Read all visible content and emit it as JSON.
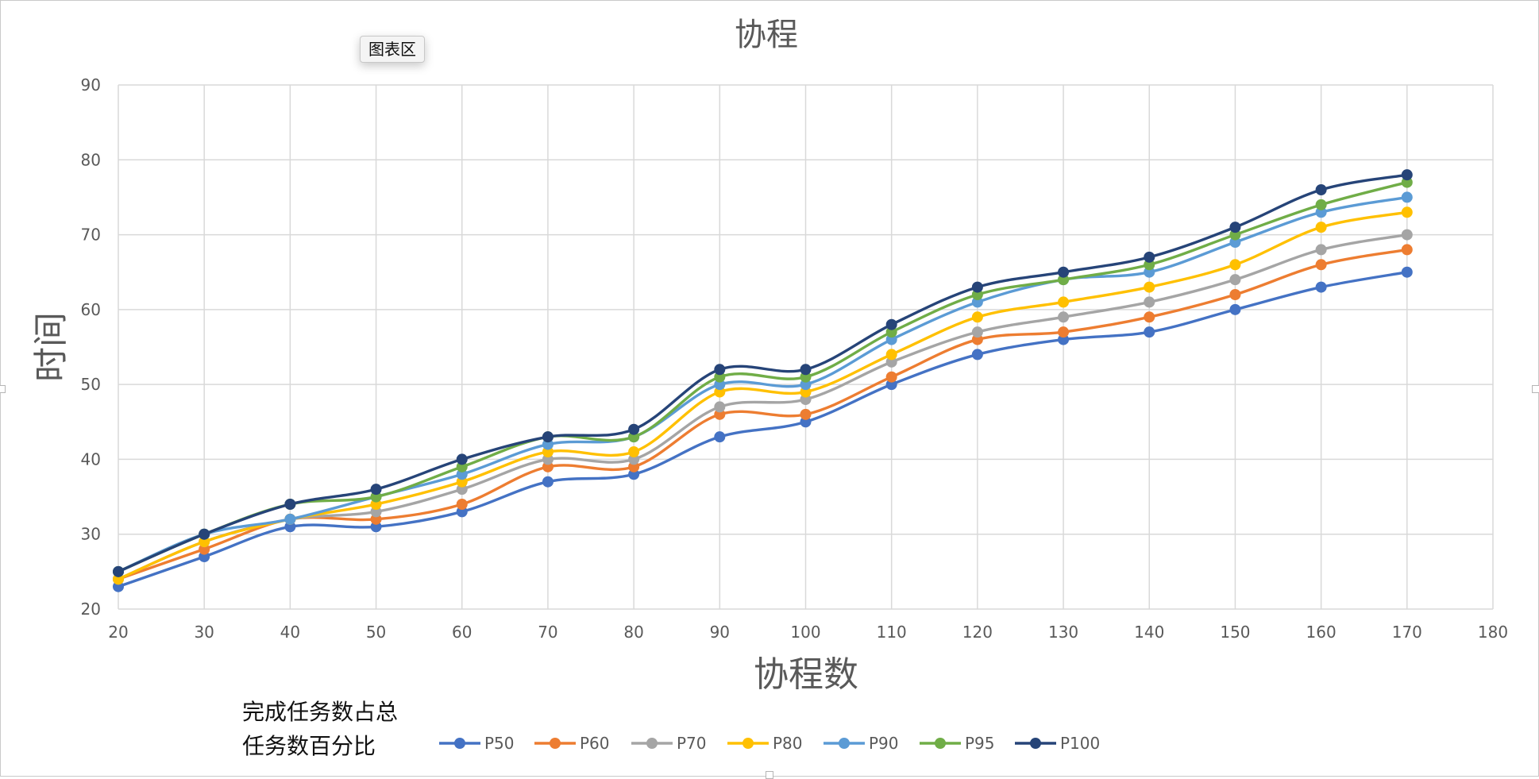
{
  "chart_area_tooltip": "图表区",
  "colors": {
    "background": "#ffffff",
    "gridline": "#d9d9d9",
    "axis_text": "#595959",
    "title_text": "#595959",
    "frame_border": "#c9c9c9"
  },
  "chart_data": {
    "type": "line",
    "smoothed": true,
    "markers": "circle",
    "title": "协程",
    "xlabel": "协程数",
    "ylabel": "时间",
    "xlim": [
      20,
      180
    ],
    "ylim": [
      20,
      90
    ],
    "x_ticks": [
      20,
      30,
      40,
      50,
      60,
      70,
      80,
      90,
      100,
      110,
      120,
      130,
      140,
      150,
      160,
      170,
      180
    ],
    "y_ticks": [
      20,
      30,
      40,
      50,
      60,
      70,
      80,
      90
    ],
    "grid": true,
    "legend_position": "bottom",
    "legend_title": [
      "完成任务数占总",
      "任务数百分比"
    ],
    "x": [
      20,
      30,
      40,
      50,
      60,
      70,
      80,
      90,
      100,
      110,
      120,
      130,
      140,
      150,
      160,
      170
    ],
    "series": [
      {
        "name": "P50",
        "color": "#4472c4",
        "values": [
          23,
          27,
          31,
          31,
          33,
          37,
          38,
          43,
          45,
          50,
          54,
          56,
          57,
          60,
          63,
          65
        ]
      },
      {
        "name": "P60",
        "color": "#ed7d31",
        "values": [
          24,
          28,
          32,
          32,
          34,
          39,
          39,
          46,
          46,
          51,
          56,
          57,
          59,
          62,
          66,
          68
        ]
      },
      {
        "name": "P70",
        "color": "#a5a5a5",
        "values": [
          24,
          29,
          32,
          33,
          36,
          40,
          40,
          47,
          48,
          53,
          57,
          59,
          61,
          64,
          68,
          70
        ]
      },
      {
        "name": "P80",
        "color": "#ffc000",
        "values": [
          24,
          29,
          32,
          34,
          37,
          41,
          41,
          49,
          49,
          54,
          59,
          61,
          63,
          66,
          71,
          73
        ]
      },
      {
        "name": "P90",
        "color": "#5b9bd5",
        "values": [
          25,
          30,
          32,
          35,
          38,
          42,
          43,
          50,
          50,
          56,
          61,
          64,
          65,
          69,
          73,
          75
        ]
      },
      {
        "name": "P95",
        "color": "#70ad47",
        "values": [
          25,
          30,
          34,
          35,
          39,
          43,
          43,
          51,
          51,
          57,
          62,
          64,
          66,
          70,
          74,
          77
        ]
      },
      {
        "name": "P100",
        "color": "#264478",
        "values": [
          25,
          30,
          34,
          36,
          40,
          43,
          44,
          52,
          52,
          58,
          63,
          65,
          67,
          71,
          76,
          78
        ]
      }
    ]
  }
}
